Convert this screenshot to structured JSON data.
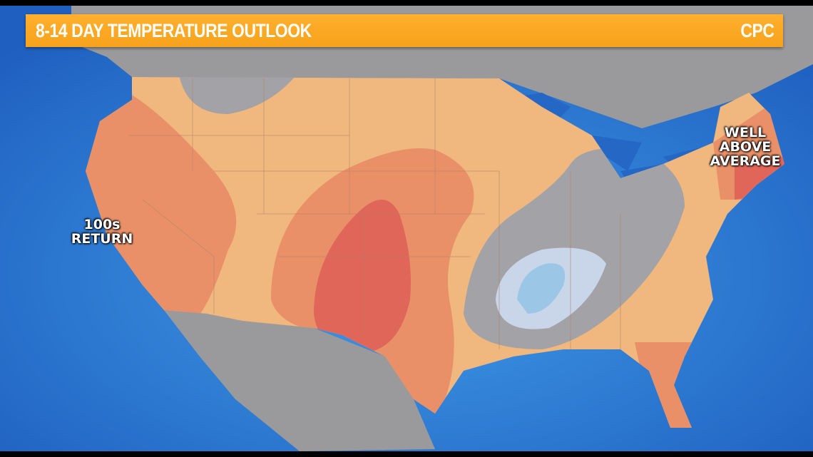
{
  "header": {
    "title": "8-14 DAY TEMPERATURE OUTLOOK",
    "source": "CPC"
  },
  "labels": {
    "west": [
      "100s",
      "RETURN"
    ],
    "northeast": [
      "WELL",
      "ABOVE",
      "AVERAGE"
    ]
  },
  "colors": {
    "banner": "#f7a21b",
    "ocean": "#2d7fd6",
    "land_outside": "#9a9a9c",
    "slightly_above": "#f0b77e",
    "above": "#e99068",
    "well_above": "#e0665a",
    "near_normal": "#a3a2a6",
    "below": "#c9d6ea",
    "well_below": "#9cc6e6"
  }
}
